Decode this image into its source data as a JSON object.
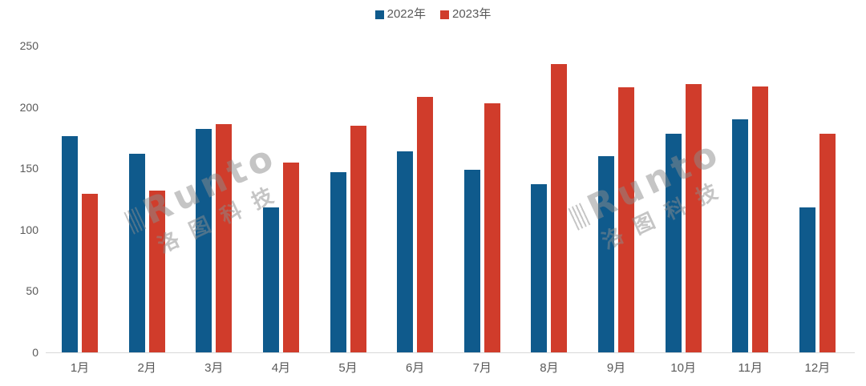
{
  "chart_data": {
    "type": "bar",
    "title": "",
    "categories": [
      "1月",
      "2月",
      "3月",
      "4月",
      "5月",
      "6月",
      "7月",
      "8月",
      "9月",
      "10月",
      "11月",
      "12月"
    ],
    "series": [
      {
        "name": "2022年",
        "color": "#0F5A8C",
        "values": [
          176,
          162,
          182,
          118,
          147,
          164,
          149,
          137,
          160,
          178,
          190,
          118
        ]
      },
      {
        "name": "2023年",
        "color": "#D03C2B",
        "values": [
          129,
          132,
          186,
          155,
          185,
          208,
          203,
          235,
          216,
          219,
          217,
          178
        ]
      }
    ],
    "xlabel": "",
    "ylabel": "",
    "ylim": [
      0,
      250
    ],
    "yticks": [
      0,
      50,
      100,
      150,
      200,
      250
    ],
    "grid": false,
    "legend_position": "top-center"
  },
  "colors": {
    "bar_2022": "#0F5A8C",
    "bar_2023": "#D03C2B",
    "axis_text": "#595959",
    "axis_line": "#D9D9D9",
    "watermark": "#8C8C8C",
    "background": "#FFFFFF"
  },
  "watermark": {
    "brand": "Runto",
    "cn": "洛图科技"
  }
}
